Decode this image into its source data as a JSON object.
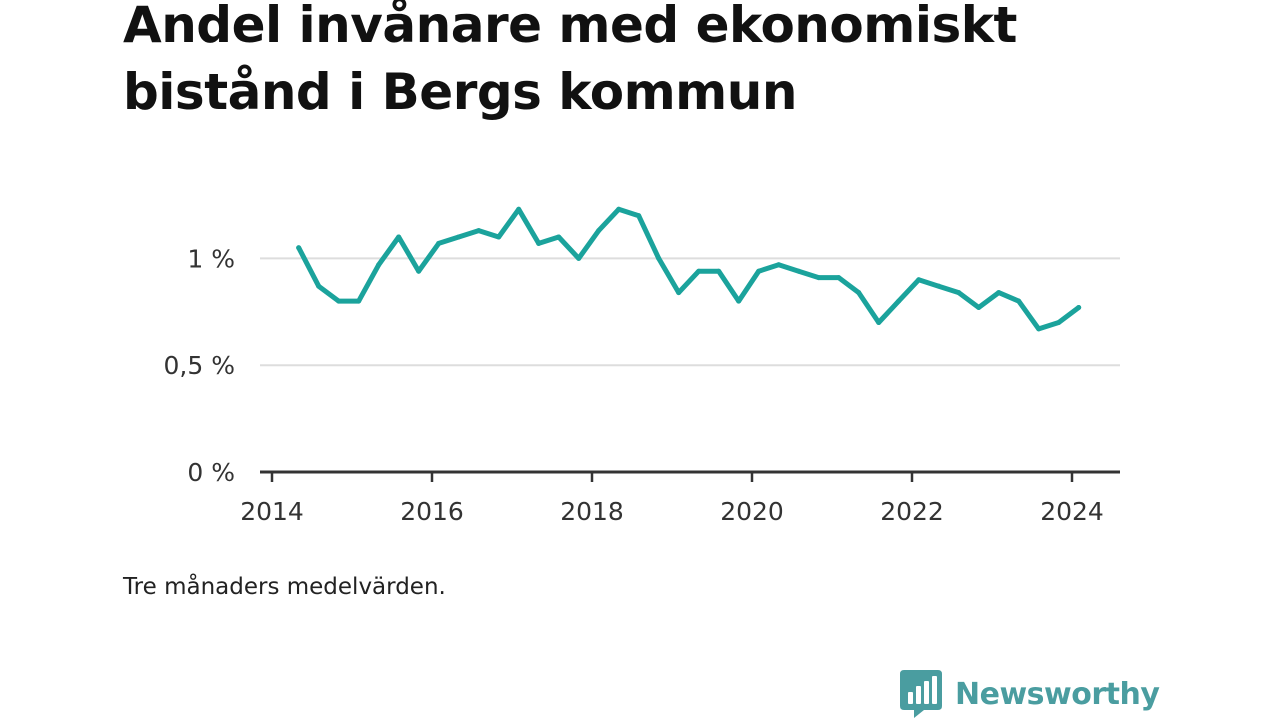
{
  "title": "Andel invånare med ekonomiskt bistånd i Bergs kommun",
  "note": "Tre månaders medelvärden.",
  "brand": {
    "name": "Newsworthy",
    "icon": "bar-chart-speech-bubble-icon",
    "color": "#4a9da0"
  },
  "chart_data": {
    "type": "line",
    "title": "Andel invånare med ekonomiskt bistånd i Bergs kommun",
    "xlabel": "",
    "ylabel": "",
    "x_ticks": [
      "2014",
      "2016",
      "2018",
      "2020",
      "2022",
      "2024"
    ],
    "y_ticks": [
      {
        "value": 0,
        "label": "0 %"
      },
      {
        "value": 0.5,
        "label": "0,5 %"
      },
      {
        "value": 1,
        "label": "1 %"
      }
    ],
    "xlim": [
      "2014-01",
      "2024-12"
    ],
    "ylim": [
      0,
      1.25
    ],
    "grid": true,
    "line_color": "#1ba39c",
    "series": [
      {
        "x": [
          "2014-05",
          "2014-08",
          "2014-11",
          "2015-02",
          "2015-05",
          "2015-08",
          "2015-11",
          "2016-02",
          "2016-05",
          "2016-08",
          "2016-11",
          "2017-02",
          "2017-05",
          "2017-08",
          "2017-11",
          "2018-02",
          "2018-05",
          "2018-08",
          "2018-11",
          "2019-02",
          "2019-05",
          "2019-08",
          "2019-11",
          "2020-02",
          "2020-05",
          "2020-08",
          "2020-11",
          "2021-02",
          "2021-05",
          "2021-08",
          "2021-11",
          "2022-02",
          "2022-05",
          "2022-08",
          "2022-11",
          "2023-02",
          "2023-05",
          "2023-08",
          "2023-11",
          "2024-02"
        ],
        "values": [
          1.05,
          0.87,
          0.8,
          0.8,
          0.97,
          1.1,
          0.94,
          1.07,
          1.1,
          1.13,
          1.1,
          1.23,
          1.07,
          1.1,
          1.0,
          1.13,
          1.23,
          1.2,
          1.0,
          0.84,
          0.94,
          0.94,
          0.8,
          0.94,
          0.97,
          0.94,
          0.91,
          0.91,
          0.84,
          0.7,
          0.8,
          0.9,
          0.87,
          0.84,
          0.77,
          0.84,
          0.8,
          0.67,
          0.7,
          0.77
        ]
      }
    ]
  }
}
